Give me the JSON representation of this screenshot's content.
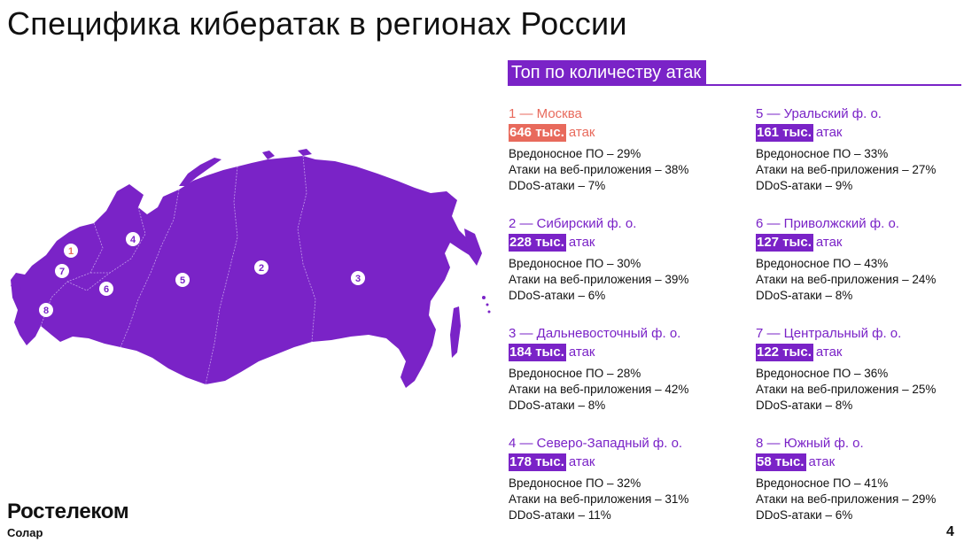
{
  "title": "Специфика кибератак в регионах России",
  "section_title": "Топ по количеству атак",
  "colors": {
    "accent": "#7a23c7",
    "highlight": "#e86a5c"
  },
  "regions": [
    {
      "head": "1 — Москва",
      "amount": "646 тыс.",
      "suffix": "атак",
      "stats": [
        "Вредоносное ПО – 29%",
        "Атаки на веб-приложения – 38%",
        "DDoS-атаки – 7%"
      ]
    },
    {
      "head": "2 — Сибирский ф. о.",
      "amount": "228 тыс.",
      "suffix": "атак",
      "stats": [
        "Вредоносное ПО – 30%",
        "Атаки на веб-приложения – 39%",
        "DDoS-атаки – 6%"
      ]
    },
    {
      "head": "3 — Дальневосточный ф. о.",
      "amount": "184 тыс.",
      "suffix": "атак",
      "stats": [
        "Вредоносное ПО – 28%",
        "Атаки на веб-приложения – 42%",
        "DDoS-атаки – 8%"
      ]
    },
    {
      "head": "4 — Северо-Западный ф. о.",
      "amount": "178 тыс.",
      "suffix": "атак",
      "stats": [
        "Вредоносное ПО – 32%",
        "Атаки на веб-приложения – 31%",
        "DDoS-атаки – 11%"
      ]
    },
    {
      "head": "5 — Уральский ф. о.",
      "amount": "161 тыс.",
      "suffix": "атак",
      "stats": [
        "Вредоносное ПО – 33%",
        "Атаки на веб-приложения – 27%",
        "DDoS-атаки – 9%"
      ]
    },
    {
      "head": "6 — Приволжский ф. о.",
      "amount": "127 тыс.",
      "suffix": "атак",
      "stats": [
        "Вредоносное ПО – 43%",
        "Атаки на веб-приложения – 24%",
        "DDoS-атаки – 8%"
      ]
    },
    {
      "head": "7 — Центральный ф. о.",
      "amount": "122 тыс.",
      "suffix": "атак",
      "stats": [
        "Вредоносное ПО – 36%",
        "Атаки на веб-приложения – 25%",
        "DDoS-атаки – 8%"
      ]
    },
    {
      "head": "8 — Южный ф. о.",
      "amount": "58 тыс.",
      "suffix": "атак",
      "stats": [
        "Вредоносное ПО – 41%",
        "Атаки на веб-приложения – 29%",
        "DDoS-атаки – 6%"
      ]
    }
  ],
  "map_markers": [
    "1",
    "2",
    "3",
    "4",
    "5",
    "6",
    "7",
    "8"
  ],
  "logo": {
    "brand": "Ростелеком",
    "sub": "Солар"
  },
  "page_number": "4"
}
